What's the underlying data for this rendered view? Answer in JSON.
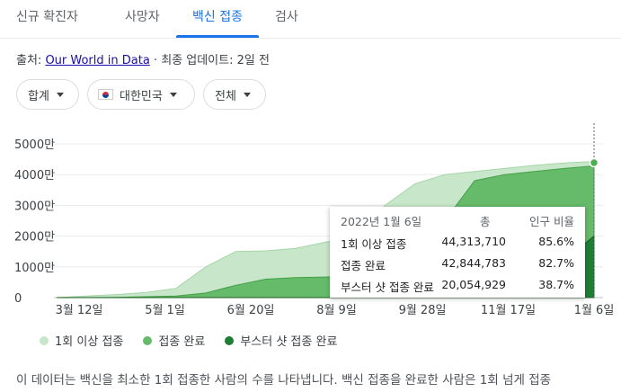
{
  "tabs": [
    "신규 확진자",
    "사망자",
    "백신 접종",
    "검사"
  ],
  "source": {
    "prefix": "출처: ",
    "link": "Our World in Data",
    "suffix": " · 최종 업데이트: 2일 전"
  },
  "filters": {
    "metric": "합계",
    "country": "대한민국",
    "range": "전체"
  },
  "chart_data": {
    "type": "area",
    "yticks": [
      "5000만",
      "4000만",
      "3000만",
      "2000만",
      "1000만",
      "0"
    ],
    "xticks": [
      "3월 12일",
      "5월 1일",
      "6월 20일",
      "8월 9일",
      "9월 28일",
      "11월 17일",
      "1월 6일"
    ],
    "series": [
      {
        "name": "1회 이상 접종",
        "color": "#c8e6c9",
        "stroke": "#a5d6a7",
        "values_millions": [
          0.0,
          0.5,
          1.0,
          1.7,
          3.0,
          10.0,
          15.0,
          15.2,
          16.0,
          18.0,
          20.0,
          30.0,
          37.0,
          40.0,
          41.0,
          42.0,
          43.0,
          43.8,
          44.31
        ]
      },
      {
        "name": "접종 완료",
        "color": "#66bb6a",
        "stroke": "#43a047",
        "values_millions": [
          0.0,
          0.0,
          0.1,
          0.3,
          0.5,
          1.5,
          4.0,
          6.0,
          6.5,
          6.7,
          7.0,
          8.0,
          14.0,
          25.0,
          38.0,
          40.0,
          41.0,
          42.0,
          42.84
        ]
      },
      {
        "name": "부스터 샷 접종 완료",
        "color": "#1e7e34",
        "stroke": "#1b5e20",
        "values_millions": [
          0,
          0,
          0,
          0,
          0,
          0,
          0,
          0,
          0,
          0,
          0,
          0,
          0,
          0,
          0,
          0.5,
          3.0,
          12.0,
          20.05
        ]
      }
    ],
    "ylim": [
      0,
      50
    ]
  },
  "tooltip": {
    "date": "2022년 1월 6일",
    "col_total": "총",
    "col_ratio": "인구 비율",
    "rows": [
      {
        "label": "1회 이상 접종",
        "total": "44,313,710",
        "ratio": "85.6%"
      },
      {
        "label": "접종 완료",
        "total": "42,844,783",
        "ratio": "82.7%"
      },
      {
        "label": "부스터 샷 접종 완료",
        "total": "20,054,929",
        "ratio": "38.7%"
      }
    ]
  },
  "legend": [
    "1회 이상 접종",
    "접종 완료",
    "부스터 샷 접종 완료"
  ],
  "description": "이 데이터는 백신을 최소한 1회 접종한 사람의 수를 나타냅니다. 백신 접종을 완료한 사람은 1회 넘게 접종"
}
